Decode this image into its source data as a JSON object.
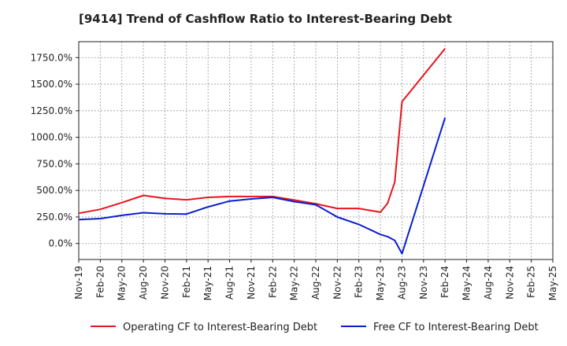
{
  "chart_data": {
    "type": "line",
    "title": "[9414]  Trend of Cashflow Ratio to Interest-Bearing Debt",
    "xlabel": "",
    "ylabel": "",
    "ylim": [
      -150,
      1900
    ],
    "yticks": [
      0,
      250,
      500,
      750,
      1000,
      1250,
      1500,
      1750
    ],
    "ytick_labels": [
      "0.0%",
      "250.0%",
      "500.0%",
      "750.0%",
      "1000.0%",
      "1250.0%",
      "1500.0%",
      "1750.0%"
    ],
    "x_range": [
      "2019-11",
      "2025-05"
    ],
    "x_tick_labels": [
      "Nov-19",
      "Feb-20",
      "May-20",
      "Aug-20",
      "Nov-20",
      "Feb-21",
      "May-21",
      "Aug-21",
      "Nov-21",
      "Feb-22",
      "May-22",
      "Aug-22",
      "Nov-22",
      "Feb-23",
      "May-23",
      "Aug-23",
      "Nov-23",
      "Feb-24",
      "May-24",
      "Aug-24",
      "Nov-24",
      "Feb-25",
      "May-25"
    ],
    "grid": true,
    "legend_position": "bottom",
    "series": [
      {
        "name": "Operating CF to Interest-Bearing Debt",
        "color": "#e8141e",
        "points": [
          [
            "2019-11",
            285
          ],
          [
            "2020-02",
            322
          ],
          [
            "2020-05",
            385
          ],
          [
            "2020-08",
            453
          ],
          [
            "2020-11",
            425
          ],
          [
            "2021-02",
            412
          ],
          [
            "2021-05",
            435
          ],
          [
            "2021-08",
            443
          ],
          [
            "2021-11",
            443
          ],
          [
            "2022-02",
            443
          ],
          [
            "2022-05",
            410
          ],
          [
            "2022-08",
            375
          ],
          [
            "2022-11",
            330
          ],
          [
            "2023-02",
            330
          ],
          [
            "2023-05",
            295
          ],
          [
            "2023-06",
            380
          ],
          [
            "2023-07",
            580
          ],
          [
            "2023-08",
            1335
          ],
          [
            "2024-02",
            1835
          ]
        ]
      },
      {
        "name": "Free CF to Interest-Bearing Debt",
        "color": "#0b1ed2",
        "points": [
          [
            "2019-11",
            225
          ],
          [
            "2020-02",
            235
          ],
          [
            "2020-05",
            265
          ],
          [
            "2020-08",
            290
          ],
          [
            "2020-11",
            280
          ],
          [
            "2021-02",
            278
          ],
          [
            "2021-05",
            345
          ],
          [
            "2021-08",
            400
          ],
          [
            "2021-11",
            420
          ],
          [
            "2022-02",
            435
          ],
          [
            "2022-05",
            395
          ],
          [
            "2022-08",
            365
          ],
          [
            "2022-11",
            250
          ],
          [
            "2023-02",
            180
          ],
          [
            "2023-05",
            85
          ],
          [
            "2023-06",
            65
          ],
          [
            "2023-07",
            30
          ],
          [
            "2023-08",
            -95
          ],
          [
            "2024-02",
            1185
          ]
        ]
      }
    ]
  }
}
